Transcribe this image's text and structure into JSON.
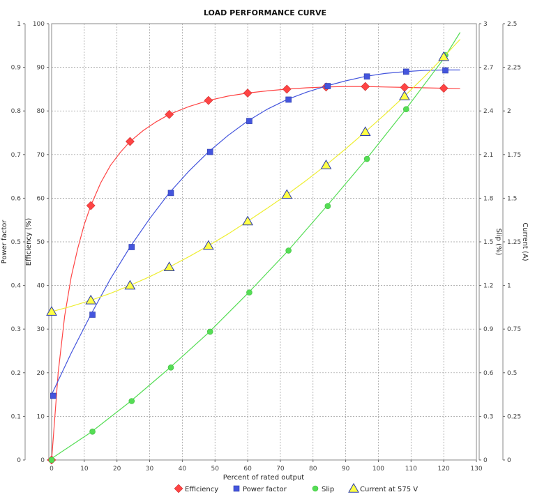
{
  "chart_data": {
    "type": "line",
    "title": "LOAD PERFORMANCE CURVE",
    "xlabel": "Percent of rated output",
    "xlim": [
      0,
      130
    ],
    "xticks": [
      0,
      10,
      20,
      30,
      40,
      50,
      60,
      70,
      80,
      90,
      100,
      110,
      120,
      130
    ],
    "grid": true,
    "legend_position": "bottom-center",
    "axes": {
      "power_factor": {
        "label": "Power factor",
        "side": "left-outer",
        "lim": [
          0,
          1
        ],
        "ticks": [
          "0",
          "0.1",
          "0.2",
          "0.3",
          "0.4",
          "0.5",
          "0.6",
          "0.7",
          "0.8",
          "0.9",
          "1"
        ]
      },
      "efficiency": {
        "label": "Efficiency (%)",
        "side": "left-inner",
        "lim": [
          0,
          100
        ],
        "ticks": [
          "0",
          "10",
          "20",
          "30",
          "40",
          "50",
          "60",
          "70",
          "80",
          "90",
          "100"
        ]
      },
      "slip": {
        "label": "Slip (%)",
        "side": "right-inner",
        "lim": [
          0,
          3
        ],
        "ticks": [
          "0",
          "0.3",
          "0.6",
          "0.9",
          "1.2",
          "1.5",
          "1.8",
          "2.1",
          "2.4",
          "2.7",
          "3"
        ]
      },
      "current": {
        "label": "Current (A)",
        "side": "right-outer",
        "lim": [
          0,
          2.5
        ],
        "ticks": [
          "0",
          "0.25",
          "0.5",
          "0.75",
          "1",
          "1.25",
          "1.5",
          "1.75",
          "2",
          "2.25",
          "2.5"
        ]
      }
    },
    "series": [
      {
        "name": "Efficiency",
        "axis": "efficiency",
        "color": "#ff4444",
        "marker": "diamond",
        "points": [
          [
            0,
            0
          ],
          [
            12,
            58.3
          ],
          [
            24,
            73
          ],
          [
            36,
            79.2
          ],
          [
            48,
            82.4
          ],
          [
            60,
            84.1
          ],
          [
            72,
            85
          ],
          [
            84,
            85.5
          ],
          [
            96,
            85.6
          ],
          [
            108,
            85.4
          ],
          [
            120,
            85.2
          ]
        ],
        "curve": [
          [
            0,
            0
          ],
          [
            2,
            20
          ],
          [
            4,
            33
          ],
          [
            6,
            42
          ],
          [
            8,
            48.5
          ],
          [
            10,
            54
          ],
          [
            12,
            58.3
          ],
          [
            15,
            63.5
          ],
          [
            18,
            67.5
          ],
          [
            21,
            70.5
          ],
          [
            24,
            73
          ],
          [
            28,
            75.5
          ],
          [
            32,
            77.5
          ],
          [
            36,
            79.2
          ],
          [
            42,
            81
          ],
          [
            48,
            82.4
          ],
          [
            54,
            83.4
          ],
          [
            60,
            84.1
          ],
          [
            66,
            84.6
          ],
          [
            72,
            85
          ],
          [
            78,
            85.3
          ],
          [
            84,
            85.5
          ],
          [
            90,
            85.6
          ],
          [
            96,
            85.6
          ],
          [
            102,
            85.5
          ],
          [
            108,
            85.4
          ],
          [
            114,
            85.3
          ],
          [
            120,
            85.2
          ],
          [
            125,
            85.1
          ]
        ]
      },
      {
        "name": "Power factor",
        "axis": "power_factor",
        "color": "#4455dd",
        "marker": "square",
        "points": [
          [
            0.5,
            0.147
          ],
          [
            12.5,
            0.333
          ],
          [
            24.5,
            0.488
          ],
          [
            36.5,
            0.612
          ],
          [
            48.5,
            0.706
          ],
          [
            60.5,
            0.777
          ],
          [
            72.5,
            0.826
          ],
          [
            84.5,
            0.857
          ],
          [
            96.5,
            0.879
          ],
          [
            108.5,
            0.89
          ],
          [
            120.5,
            0.893
          ]
        ],
        "curve": [
          [
            0,
            0.15
          ],
          [
            6,
            0.245
          ],
          [
            12,
            0.333
          ],
          [
            18,
            0.415
          ],
          [
            24,
            0.488
          ],
          [
            30,
            0.553
          ],
          [
            36,
            0.612
          ],
          [
            42,
            0.662
          ],
          [
            48,
            0.706
          ],
          [
            54,
            0.744
          ],
          [
            60,
            0.777
          ],
          [
            66,
            0.804
          ],
          [
            72,
            0.826
          ],
          [
            78,
            0.843
          ],
          [
            84,
            0.857
          ],
          [
            90,
            0.869
          ],
          [
            96,
            0.879
          ],
          [
            102,
            0.886
          ],
          [
            108,
            0.89
          ],
          [
            114,
            0.893
          ],
          [
            120,
            0.894
          ],
          [
            125,
            0.894
          ]
        ]
      },
      {
        "name": "Slip",
        "axis": "slip",
        "color": "#55dd55",
        "marker": "circle",
        "points": [
          [
            0,
            0
          ],
          [
            12.5,
            0.195
          ],
          [
            24.5,
            0.405
          ],
          [
            36.5,
            0.636
          ],
          [
            48.5,
            0.882
          ],
          [
            60.5,
            1.152
          ],
          [
            72.5,
            1.44
          ],
          [
            84.5,
            1.746
          ],
          [
            96.5,
            2.07
          ],
          [
            108.5,
            2.412
          ],
          [
            120.5,
            2.784
          ]
        ],
        "curve": [
          [
            0,
            0.01
          ],
          [
            12,
            0.19
          ],
          [
            24,
            0.4
          ],
          [
            36,
            0.63
          ],
          [
            48,
            0.875
          ],
          [
            60,
            1.145
          ],
          [
            72,
            1.43
          ],
          [
            84,
            1.74
          ],
          [
            96,
            2.06
          ],
          [
            108,
            2.4
          ],
          [
            120,
            2.76
          ],
          [
            125,
            2.94
          ]
        ]
      },
      {
        "name": "Current at 575 V",
        "axis": "current",
        "color": "#ffff44",
        "marker": "triangle",
        "points": [
          [
            0,
            0.85
          ],
          [
            12,
            0.915
          ],
          [
            24,
            1.0
          ],
          [
            36,
            1.105
          ],
          [
            48,
            1.228
          ],
          [
            60,
            1.368
          ],
          [
            72,
            1.52
          ],
          [
            84,
            1.69
          ],
          [
            96,
            1.88
          ],
          [
            108,
            2.085
          ],
          [
            120,
            2.31
          ]
        ],
        "curve": [
          [
            0,
            0.85
          ],
          [
            6,
            0.88
          ],
          [
            12,
            0.915
          ],
          [
            18,
            0.955
          ],
          [
            24,
            1.0
          ],
          [
            30,
            1.05
          ],
          [
            36,
            1.105
          ],
          [
            42,
            1.165
          ],
          [
            48,
            1.228
          ],
          [
            54,
            1.295
          ],
          [
            60,
            1.368
          ],
          [
            66,
            1.443
          ],
          [
            72,
            1.52
          ],
          [
            78,
            1.603
          ],
          [
            84,
            1.69
          ],
          [
            90,
            1.783
          ],
          [
            96,
            1.88
          ],
          [
            102,
            1.98
          ],
          [
            108,
            2.085
          ],
          [
            114,
            2.195
          ],
          [
            120,
            2.31
          ],
          [
            125,
            2.41
          ]
        ]
      }
    ]
  }
}
